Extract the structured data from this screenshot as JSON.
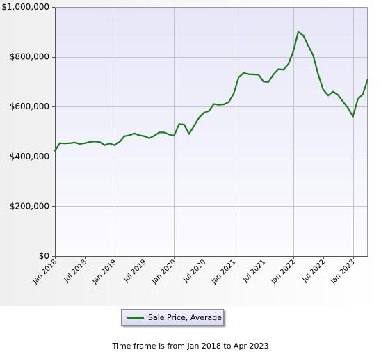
{
  "chart_data": {
    "type": "line",
    "title": "",
    "xlabel": "",
    "ylabel": "",
    "x_start": "2018-01",
    "x_end": "2023-04",
    "ylim": [
      0,
      1000000
    ],
    "y_ticks": [
      0,
      200000,
      400000,
      600000,
      800000,
      1000000
    ],
    "y_tick_labels": [
      "$0",
      "$200,000",
      "$400,000",
      "$600,000",
      "$800,000",
      "$1,000,000"
    ],
    "x_ticks": [
      "2018-01",
      "2018-07",
      "2019-01",
      "2019-07",
      "2020-01",
      "2020-07",
      "2021-01",
      "2021-07",
      "2022-01",
      "2022-07",
      "2023-01"
    ],
    "x_tick_labels": [
      "Jan 2018",
      "Jul 2018",
      "Jan 2019",
      "Jul 2019",
      "Jan 2020",
      "Jul 2020",
      "Jan 2021",
      "Jul 2021",
      "Jan 2022",
      "Jul 2022",
      "Jan 2023"
    ],
    "grid": true,
    "legend_position": "bottom-center",
    "series": [
      {
        "name": "Sale Price, Average",
        "color": "#1a7a1a",
        "x": [
          "2018-01",
          "2018-02",
          "2018-03",
          "2018-04",
          "2018-05",
          "2018-06",
          "2018-07",
          "2018-08",
          "2018-09",
          "2018-10",
          "2018-11",
          "2018-12",
          "2019-01",
          "2019-02",
          "2019-03",
          "2019-04",
          "2019-05",
          "2019-06",
          "2019-07",
          "2019-08",
          "2019-09",
          "2019-10",
          "2019-11",
          "2019-12",
          "2020-01",
          "2020-02",
          "2020-03",
          "2020-04",
          "2020-05",
          "2020-06",
          "2020-07",
          "2020-08",
          "2020-09",
          "2020-10",
          "2020-11",
          "2020-12",
          "2021-01",
          "2021-02",
          "2021-03",
          "2021-04",
          "2021-05",
          "2021-06",
          "2021-07",
          "2021-08",
          "2021-09",
          "2021-10",
          "2021-11",
          "2021-12",
          "2022-01",
          "2022-02",
          "2022-03",
          "2022-04",
          "2022-05",
          "2022-06",
          "2022-07",
          "2022-08",
          "2022-09",
          "2022-10",
          "2022-11",
          "2022-12",
          "2023-01",
          "2023-02",
          "2023-03",
          "2023-04"
        ],
        "values": [
          423000,
          453000,
          452000,
          453000,
          456000,
          450000,
          453000,
          458000,
          460000,
          458000,
          445000,
          452000,
          445000,
          458000,
          481000,
          485000,
          492000,
          485000,
          481000,
          473000,
          483000,
          496000,
          496000,
          488000,
          483000,
          530000,
          528000,
          490000,
          522000,
          555000,
          575000,
          582000,
          610000,
          607000,
          609000,
          618000,
          652000,
          718000,
          735000,
          730000,
          729000,
          728000,
          700000,
          699000,
          729000,
          750000,
          748000,
          770000,
          822000,
          900000,
          886000,
          845000,
          806000,
          730000,
          669000,
          645000,
          660000,
          647000,
          620000,
          595000,
          560000,
          630000,
          650000,
          710000
        ]
      }
    ]
  },
  "legend": {
    "label": "Sale Price, Average"
  },
  "footnote": "Time frame is from Jan 2018 to Apr 2023"
}
